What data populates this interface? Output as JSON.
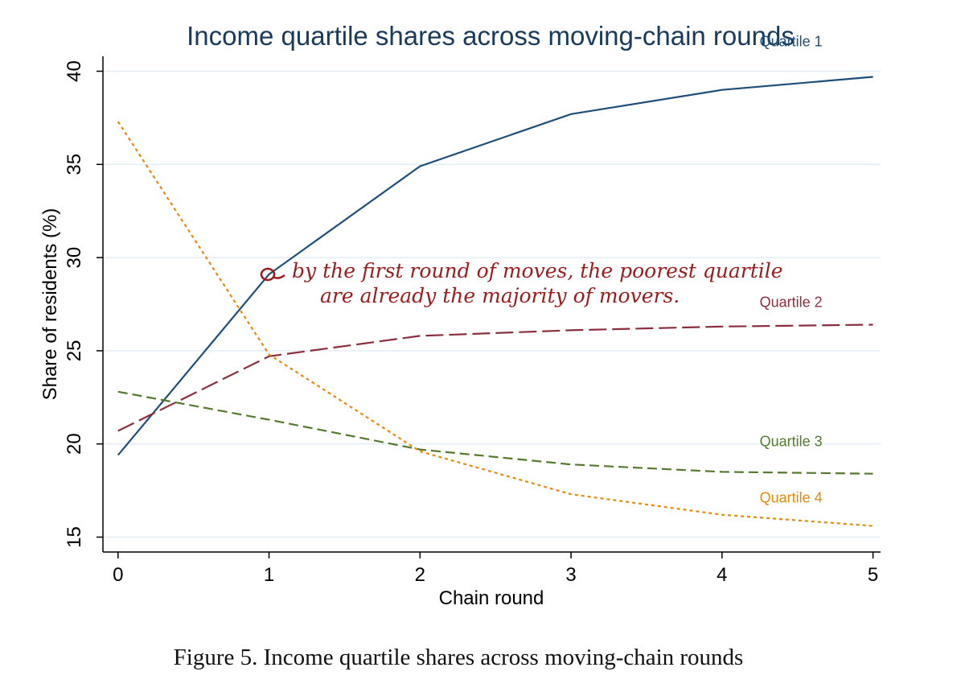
{
  "caption": "Figure 5. Income quartile shares across moving-chain rounds",
  "annotation": {
    "line1": "by the first round of moves, the poorest quartile",
    "line2": "are already the majority of movers."
  },
  "chart_data": {
    "type": "line",
    "title": "Income quartile shares across moving-chain rounds",
    "xlabel": "Chain round",
    "ylabel": "Share of residents (%)",
    "x": [
      0,
      1,
      2,
      3,
      4,
      5
    ],
    "xlim": [
      -0.1,
      5.05
    ],
    "ylim": [
      14.2,
      40.8
    ],
    "xticks": [
      0,
      1,
      2,
      3,
      4,
      5
    ],
    "yticks": [
      15,
      20,
      25,
      30,
      35,
      40
    ],
    "grid": "horizontal",
    "series": [
      {
        "name": "Quartile 1",
        "values": [
          19.4,
          29.1,
          34.9,
          37.7,
          39.0,
          39.7
        ],
        "color": "#1f4e79",
        "dash": "solid"
      },
      {
        "name": "Quartile 2",
        "values": [
          20.7,
          24.7,
          25.8,
          26.1,
          26.3,
          26.4
        ],
        "color": "#8b2f3f",
        "dash": "long-dash"
      },
      {
        "name": "Quartile 3",
        "values": [
          22.8,
          21.3,
          19.7,
          18.9,
          18.5,
          18.4
        ],
        "color": "#557a2f",
        "dash": "dash"
      },
      {
        "name": "Quartile 4",
        "values": [
          37.3,
          24.8,
          19.6,
          17.3,
          16.2,
          15.6
        ],
        "color": "#e8890c",
        "dash": "dot"
      }
    ]
  }
}
